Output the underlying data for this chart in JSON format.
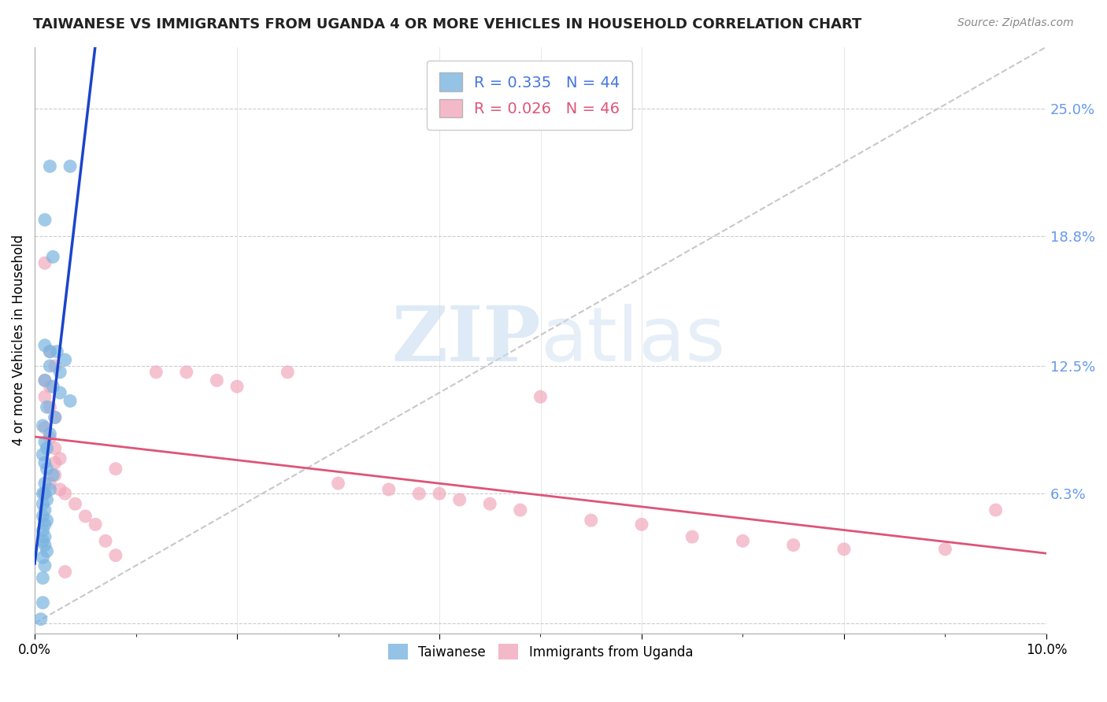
{
  "title": "TAIWANESE VS IMMIGRANTS FROM UGANDA 4 OR MORE VEHICLES IN HOUSEHOLD CORRELATION CHART",
  "source": "Source: ZipAtlas.com",
  "ylabel": "4 or more Vehicles in Household",
  "xmin": 0.0,
  "xmax": 0.1,
  "ymin": -0.005,
  "ymax": 0.28,
  "ytick_vals": [
    0.0,
    0.063,
    0.125,
    0.188,
    0.25
  ],
  "ytick_labels": [
    "",
    "6.3%",
    "12.5%",
    "18.8%",
    "25.0%"
  ],
  "xticks": [
    0.0,
    0.02,
    0.04,
    0.06,
    0.08,
    0.1
  ],
  "xtick_labels": [
    "0.0%",
    "",
    "",
    "",
    "",
    "10.0%"
  ],
  "legend_r1": "R = 0.335",
  "legend_n1": "N = 44",
  "legend_r2": "R = 0.026",
  "legend_n2": "N = 46",
  "color_taiwanese": "#7ab4e0",
  "color_uganda": "#f2a8bc",
  "color_trendline_taiwanese": "#1a44cc",
  "color_trendline_uganda": "#dd5577",
  "color_diagonal": "#c8c8c8",
  "label_taiwanese": "Taiwanese",
  "label_uganda": "Immigrants from Uganda",
  "watermark_zip": "ZIP",
  "watermark_atlas": "atlas",
  "right_axis_color": "#6699ee",
  "taiwanese_x": [
    0.0015,
    0.0035,
    0.001,
    0.0018,
    0.001,
    0.0015,
    0.0022,
    0.003,
    0.0015,
    0.0025,
    0.001,
    0.0018,
    0.0025,
    0.0035,
    0.0012,
    0.002,
    0.0008,
    0.0015,
    0.001,
    0.0012,
    0.0008,
    0.001,
    0.0012,
    0.0018,
    0.001,
    0.0015,
    0.0008,
    0.001,
    0.0012,
    0.0008,
    0.001,
    0.0008,
    0.0012,
    0.001,
    0.0008,
    0.001,
    0.0008,
    0.001,
    0.0012,
    0.0008,
    0.001,
    0.0008,
    0.0008,
    0.0006
  ],
  "taiwanese_y": [
    0.222,
    0.222,
    0.196,
    0.178,
    0.135,
    0.132,
    0.132,
    0.128,
    0.125,
    0.122,
    0.118,
    0.115,
    0.112,
    0.108,
    0.105,
    0.1,
    0.096,
    0.092,
    0.088,
    0.085,
    0.082,
    0.078,
    0.075,
    0.072,
    0.068,
    0.065,
    0.063,
    0.063,
    0.06,
    0.058,
    0.055,
    0.052,
    0.05,
    0.048,
    0.045,
    0.042,
    0.04,
    0.038,
    0.035,
    0.032,
    0.028,
    0.022,
    0.01,
    0.002
  ],
  "uganda_x": [
    0.001,
    0.0015,
    0.002,
    0.001,
    0.0015,
    0.001,
    0.0015,
    0.002,
    0.001,
    0.0015,
    0.002,
    0.0025,
    0.002,
    0.008,
    0.012,
    0.015,
    0.018,
    0.02,
    0.025,
    0.03,
    0.035,
    0.038,
    0.04,
    0.042,
    0.045,
    0.048,
    0.05,
    0.055,
    0.06,
    0.065,
    0.07,
    0.075,
    0.08,
    0.09,
    0.095,
    0.001,
    0.0015,
    0.002,
    0.0025,
    0.003,
    0.004,
    0.005,
    0.006,
    0.007,
    0.008,
    0.003
  ],
  "uganda_y": [
    0.175,
    0.132,
    0.125,
    0.118,
    0.115,
    0.11,
    0.105,
    0.1,
    0.095,
    0.09,
    0.085,
    0.08,
    0.078,
    0.075,
    0.122,
    0.122,
    0.118,
    0.115,
    0.122,
    0.068,
    0.065,
    0.063,
    0.063,
    0.06,
    0.058,
    0.055,
    0.11,
    0.05,
    0.048,
    0.042,
    0.04,
    0.038,
    0.036,
    0.036,
    0.055,
    0.063,
    0.068,
    0.072,
    0.065,
    0.063,
    0.058,
    0.052,
    0.048,
    0.04,
    0.033,
    0.025
  ]
}
